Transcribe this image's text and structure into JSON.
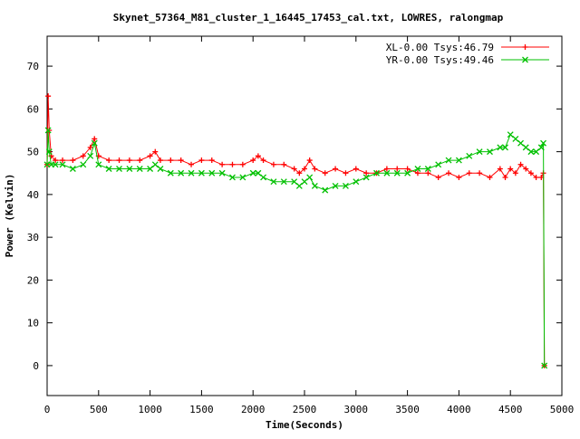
{
  "chart_data": {
    "type": "scatter",
    "title": "Skynet_57364_M81_cluster_1_16445_17453_cal.txt, LOWRES, ralongmap",
    "xlabel": "Time(Seconds)",
    "ylabel": "Power (Kelvin)",
    "xlim": [
      0,
      5000
    ],
    "ylim": [
      -7,
      77
    ],
    "x_ticks": [
      0,
      500,
      1000,
      1500,
      2000,
      2500,
      3000,
      3500,
      4000,
      4500,
      5000
    ],
    "y_ticks": [
      0,
      10,
      20,
      30,
      40,
      50,
      60,
      70
    ],
    "grid": false,
    "legend_position": "top-right",
    "series": [
      {
        "name": "XL-0.00 Tsys:46.79",
        "color": "#ff0000",
        "marker": "plus",
        "x": [
          0,
          10,
          20,
          40,
          80,
          150,
          250,
          350,
          420,
          460,
          500,
          600,
          700,
          800,
          900,
          1000,
          1050,
          1100,
          1200,
          1300,
          1400,
          1500,
          1600,
          1700,
          1800,
          1900,
          2000,
          2050,
          2100,
          2200,
          2300,
          2400,
          2450,
          2500,
          2550,
          2600,
          2700,
          2800,
          2900,
          3000,
          3100,
          3200,
          3300,
          3400,
          3500,
          3600,
          3700,
          3800,
          3900,
          4000,
          4100,
          4200,
          4300,
          4400,
          4450,
          4500,
          4550,
          4600,
          4650,
          4700,
          4750,
          4800,
          4820,
          4830
        ],
        "y": [
          47,
          63,
          55,
          49,
          48,
          48,
          48,
          49,
          51,
          53,
          49,
          48,
          48,
          48,
          48,
          49,
          50,
          48,
          48,
          48,
          47,
          48,
          48,
          47,
          47,
          47,
          48,
          49,
          48,
          47,
          47,
          46,
          45,
          46,
          48,
          46,
          45,
          46,
          45,
          46,
          45,
          45,
          46,
          46,
          46,
          45,
          45,
          44,
          45,
          44,
          45,
          45,
          44,
          46,
          44,
          46,
          45,
          47,
          46,
          45,
          44,
          44,
          45,
          0
        ]
      },
      {
        "name": "YR-0.00 Tsys:49.46",
        "color": "#00c000",
        "marker": "cross",
        "x": [
          0,
          10,
          20,
          40,
          80,
          150,
          250,
          350,
          420,
          460,
          500,
          600,
          700,
          800,
          900,
          1000,
          1050,
          1100,
          1200,
          1300,
          1400,
          1500,
          1600,
          1700,
          1800,
          1900,
          2000,
          2050,
          2100,
          2200,
          2300,
          2400,
          2450,
          2500,
          2550,
          2600,
          2700,
          2800,
          2900,
          3000,
          3100,
          3200,
          3300,
          3400,
          3500,
          3600,
          3700,
          3800,
          3900,
          4000,
          4100,
          4200,
          4300,
          4400,
          4450,
          4500,
          4550,
          4600,
          4650,
          4700,
          4750,
          4800,
          4820,
          4830
        ],
        "y": [
          47,
          55,
          50,
          47,
          47,
          47,
          46,
          47,
          49,
          52,
          47,
          46,
          46,
          46,
          46,
          46,
          47,
          46,
          45,
          45,
          45,
          45,
          45,
          45,
          44,
          44,
          45,
          45,
          44,
          43,
          43,
          43,
          42,
          43,
          44,
          42,
          41,
          42,
          42,
          43,
          44,
          45,
          45,
          45,
          45,
          46,
          46,
          47,
          48,
          48,
          49,
          50,
          50,
          51,
          51,
          54,
          53,
          52,
          51,
          50,
          50,
          51,
          52,
          0
        ]
      }
    ]
  }
}
